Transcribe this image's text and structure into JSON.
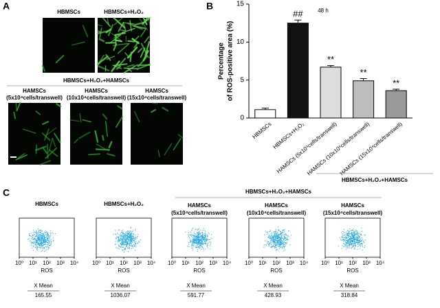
{
  "panel_a": {
    "label": "A",
    "top": [
      {
        "lines": [
          "HBMSCs"
        ]
      },
      {
        "lines": [
          "HBMSCs+H₂O₂"
        ]
      }
    ],
    "group_label": "HBMSCs+H₂O₂+HAMSCs",
    "bottom": [
      {
        "lines": [
          "HAMSCs",
          "(5x10⁴cells/transwell)"
        ]
      },
      {
        "lines": [
          "HAMSCs",
          "(10x10⁴cells/transwell)"
        ]
      },
      {
        "lines": [
          "HAMSCs",
          "(15x10⁴cells/transwell)"
        ]
      }
    ]
  },
  "chart_data": {
    "type": "bar",
    "panel_label": "B",
    "title": "48 h",
    "ylabel": [
      "Percentage",
      "of ROS-positive area  (%)"
    ],
    "categories": [
      "HBMSCs",
      "HBMSCs+H₂O₂",
      "HAMSCs (5x10⁴cells/transwell)",
      "HAMSCs (10x10⁴cells/transwell)",
      "HAMSCs (15x10⁴cells/transwell)"
    ],
    "values": [
      1.1,
      12.5,
      6.7,
      4.9,
      3.6
    ],
    "errors": [
      0.2,
      0.4,
      0.2,
      0.3,
      0.2
    ],
    "colors": [
      "#ffffff",
      "#111111",
      "#dddddd",
      "#bdbdbd",
      "#9a9a9a"
    ],
    "bar_annotations": [
      null,
      "##",
      "**",
      "**",
      "**"
    ],
    "group_label": "HBMSCs+H₂O₂+HAMSCs",
    "ylim": [
      0,
      15
    ],
    "yticks": [
      0,
      5,
      10,
      15
    ]
  },
  "panel_c": {
    "label": "C",
    "group_label": "HBMSCs+H₂O₂+HAMSCs",
    "xticks": [
      "10⁰",
      "10¹",
      "10²",
      "10³",
      "10⁴"
    ],
    "xlabel": "ROS",
    "mean_label": "X Mean",
    "plots": [
      {
        "lines": [
          "HBMSCs"
        ],
        "mean": "165.55"
      },
      {
        "lines": [
          "HBMSCs+H₂O₂"
        ],
        "mean": "1036.07"
      },
      {
        "lines": [
          "HAMSCs",
          "(5x10⁴cells/transwell)"
        ],
        "mean": "591.77"
      },
      {
        "lines": [
          "HAMSCs",
          "(10x10⁴cells/transwell)"
        ],
        "mean": "428.93"
      },
      {
        "lines": [
          "HAMSCs",
          "(15x10⁴cells/transwell)"
        ],
        "mean": "318.84"
      }
    ]
  }
}
